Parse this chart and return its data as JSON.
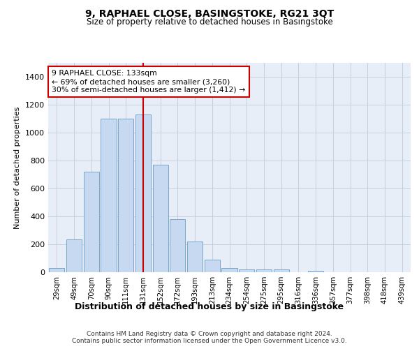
{
  "title1": "9, RAPHAEL CLOSE, BASINGSTOKE, RG21 3QT",
  "title2": "Size of property relative to detached houses in Basingstoke",
  "xlabel": "Distribution of detached houses by size in Basingstoke",
  "ylabel": "Number of detached properties",
  "categories": [
    "29sqm",
    "49sqm",
    "70sqm",
    "90sqm",
    "111sqm",
    "131sqm",
    "152sqm",
    "172sqm",
    "193sqm",
    "213sqm",
    "234sqm",
    "254sqm",
    "275sqm",
    "295sqm",
    "316sqm",
    "336sqm",
    "357sqm",
    "377sqm",
    "398sqm",
    "418sqm",
    "439sqm"
  ],
  "values": [
    30,
    235,
    720,
    1100,
    1100,
    1130,
    770,
    380,
    220,
    90,
    30,
    20,
    20,
    20,
    0,
    10,
    0,
    0,
    0,
    0,
    0
  ],
  "bar_color": "#c6d9f0",
  "bar_edge_color": "#7ba7c9",
  "red_line_index": 5,
  "ylim": [
    0,
    1500
  ],
  "yticks": [
    0,
    200,
    400,
    600,
    800,
    1000,
    1200,
    1400
  ],
  "annotation_text": "9 RAPHAEL CLOSE: 133sqm\n← 69% of detached houses are smaller (3,260)\n30% of semi-detached houses are larger (1,412) →",
  "annotation_box_color": "#ffffff",
  "annotation_box_edge": "#cc0000",
  "footer1": "Contains HM Land Registry data © Crown copyright and database right 2024.",
  "footer2": "Contains public sector information licensed under the Open Government Licence v3.0.",
  "plot_bg_color": "#e8eef8"
}
